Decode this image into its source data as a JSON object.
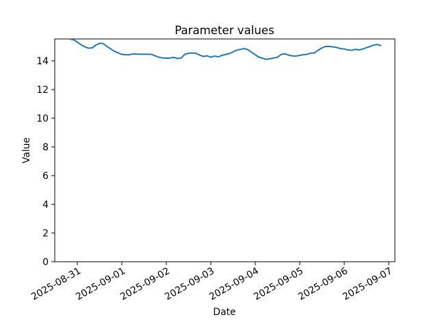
{
  "chart_data": {
    "type": "line",
    "title": "Parameter values",
    "xlabel": "Date",
    "ylabel": "Value",
    "x_tick_labels": [
      "2025-08-31",
      "2025-09-01",
      "2025-09-02",
      "2025-09-03",
      "2025-09-04",
      "2025-09-05",
      "2025-09-06",
      "2025-09-07"
    ],
    "y_ticks": [
      0,
      2,
      4,
      6,
      8,
      10,
      12,
      14
    ],
    "ylim": [
      0,
      15.524
    ],
    "grid": false,
    "background": "#ffffff",
    "line_color": "#1f77b4",
    "series": [
      {
        "x_start": "2025-08-30T20:00",
        "x_step_hours": 2,
        "values": [
          15.5,
          15.47,
          15.3,
          15.12,
          14.98,
          14.88,
          14.9,
          15.1,
          15.22,
          15.2,
          15.0,
          14.83,
          14.67,
          14.55,
          14.45,
          14.42,
          14.42,
          14.48,
          14.47,
          14.46,
          14.46,
          14.46,
          14.45,
          14.35,
          14.25,
          14.2,
          14.19,
          14.19,
          14.24,
          14.16,
          14.2,
          14.45,
          14.53,
          14.54,
          14.53,
          14.4,
          14.3,
          14.35,
          14.25,
          14.33,
          14.28,
          14.38,
          14.44,
          14.5,
          14.62,
          14.74,
          14.8,
          14.85,
          14.78,
          14.6,
          14.42,
          14.25,
          14.18,
          14.1,
          14.15,
          14.2,
          14.25,
          14.45,
          14.48,
          14.4,
          14.34,
          14.33,
          14.38,
          14.43,
          14.45,
          14.54,
          14.55,
          14.75,
          14.9,
          15.0,
          15.0,
          14.97,
          14.93,
          14.85,
          14.82,
          14.76,
          14.73,
          14.8,
          14.76,
          14.82,
          14.92,
          15.0,
          15.1,
          15.14,
          15.05
        ]
      }
    ]
  }
}
